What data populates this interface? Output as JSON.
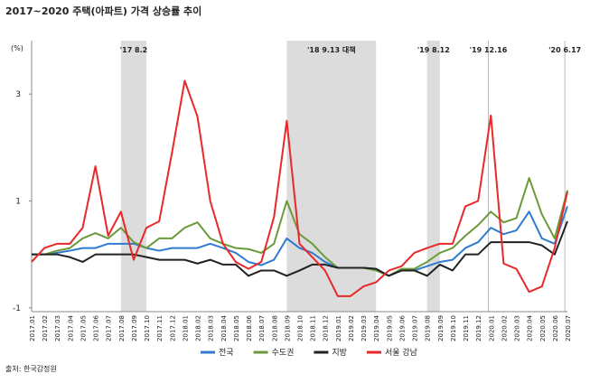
{
  "chart_data": {
    "type": "line",
    "title": "2017~2020 주택(아파트) 가격 상승률 추이",
    "y_unit": "(%)",
    "source": "출처: 한국감정원",
    "categories": [
      "2017.01",
      "2017.02",
      "2017.03",
      "2017.04",
      "2017.05",
      "2017.06",
      "2017.07",
      "2017.08",
      "2017.09",
      "2017.10",
      "2017.11",
      "2017.12",
      "2018.01",
      "2018.02",
      "2018.03",
      "2018.04",
      "2018.05",
      "2018.06",
      "2018.07",
      "2018.08",
      "2018.09",
      "2018.10",
      "2018.11",
      "2018.12",
      "2019.01",
      "2019.02",
      "2019.03",
      "2019.04",
      "2019.05",
      "2019.06",
      "2019.07",
      "2019.08",
      "2019.09",
      "2019.10",
      "2019.11",
      "2019.12",
      "2020.01",
      "2020.02",
      "2020.03",
      "2020.04",
      "2020.05",
      "2020.06",
      "2020.07"
    ],
    "series": [
      {
        "name": "전국",
        "color": "#2f7bd0",
        "values": [
          0,
          0,
          0.03,
          0.07,
          0.12,
          0.12,
          0.2,
          0.2,
          0.2,
          0.12,
          0.07,
          0.12,
          0.12,
          0.12,
          0.2,
          0.12,
          0.03,
          -0.14,
          -0.2,
          -0.1,
          0.3,
          0.12,
          0.03,
          -0.14,
          -0.25,
          -0.25,
          -0.25,
          -0.27,
          -0.4,
          -0.3,
          -0.3,
          -0.22,
          -0.14,
          -0.1,
          0.12,
          0.23,
          0.5,
          0.38,
          0.45,
          0.8,
          0.3,
          0.2,
          0.9
        ]
      },
      {
        "name": "수도권",
        "color": "#6a9a3a",
        "values": [
          0,
          0,
          0.07,
          0.12,
          0.3,
          0.4,
          0.3,
          0.5,
          0.23,
          0.12,
          0.3,
          0.3,
          0.5,
          0.6,
          0.3,
          0.2,
          0.12,
          0.1,
          0.03,
          0.2,
          1.0,
          0.38,
          0.2,
          -0.05,
          -0.25,
          -0.25,
          -0.25,
          -0.3,
          -0.4,
          -0.27,
          -0.27,
          -0.14,
          0.03,
          0.12,
          0.35,
          0.55,
          0.8,
          0.6,
          0.68,
          1.43,
          0.75,
          0.3,
          1.2
        ]
      },
      {
        "name": "지방",
        "color": "#222222",
        "values": [
          0,
          0,
          0,
          -0.05,
          -0.14,
          0,
          0,
          0,
          0,
          -0.05,
          -0.1,
          -0.1,
          -0.1,
          -0.17,
          -0.1,
          -0.19,
          -0.19,
          -0.4,
          -0.3,
          -0.3,
          -0.4,
          -0.3,
          -0.19,
          -0.19,
          -0.25,
          -0.25,
          -0.25,
          -0.27,
          -0.4,
          -0.3,
          -0.3,
          -0.4,
          -0.19,
          -0.3,
          0,
          0,
          0.23,
          0.23,
          0.23,
          0.23,
          0.17,
          0,
          0.62
        ]
      },
      {
        "name": "서울 강남",
        "color": "#e8282a",
        "values": [
          -0.14,
          0.12,
          0.2,
          0.2,
          0.5,
          1.65,
          0.35,
          0.8,
          -0.1,
          0.5,
          0.62,
          1.9,
          3.25,
          2.58,
          1.0,
          0.2,
          -0.14,
          -0.27,
          -0.14,
          0.7,
          2.5,
          0.2,
          -0.05,
          -0.3,
          -0.78,
          -0.78,
          -0.6,
          -0.52,
          -0.3,
          -0.22,
          0.03,
          0.12,
          0.2,
          0.2,
          0.9,
          1.0,
          2.6,
          -0.17,
          -0.27,
          -0.7,
          -0.6,
          0.12,
          1.17
        ]
      }
    ],
    "ylim": [
      -1.07,
      4.0
    ],
    "yticks": [
      -1,
      1,
      3
    ],
    "grid": false,
    "events": [
      {
        "label": "'17 8.2",
        "start": "2017.08",
        "end": "2017.10"
      },
      {
        "label": "'18 9.13 대책",
        "start": "2018.09",
        "end": "2019.04"
      },
      {
        "label": "'19 8.12",
        "start": "2019.08",
        "end": "2019.09"
      },
      {
        "label": "'19 12.16",
        "at": "2020.01"
      },
      {
        "label": "'20 6.17",
        "at": "2020.07"
      }
    ]
  }
}
